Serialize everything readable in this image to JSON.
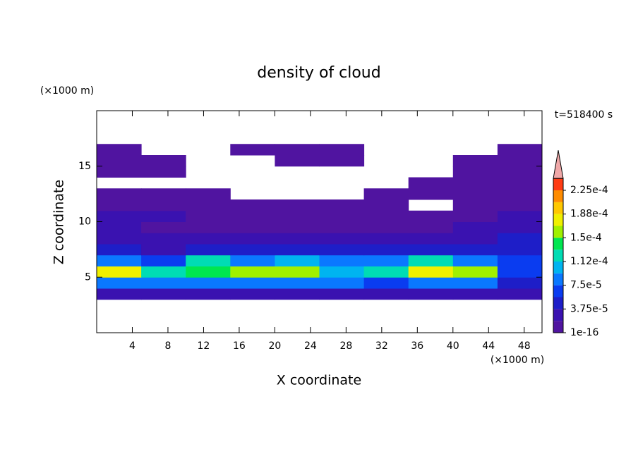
{
  "chart_data": {
    "type": "contour",
    "title": "density of cloud",
    "x_label": "X coordinate",
    "y_label": "Z coordinate",
    "x_unit": "(×1000 m)",
    "y_unit": "(×1000 m)",
    "annotation": "t=518400 s",
    "xlim": [
      0,
      50
    ],
    "ylim": [
      0,
      20
    ],
    "xticks": [
      4,
      8,
      12,
      16,
      20,
      24,
      28,
      32,
      36,
      40,
      44,
      48
    ],
    "yticks": [
      5,
      10,
      15
    ],
    "x": [
      2.5,
      7.5,
      12.5,
      17.5,
      22.5,
      27.5,
      32.5,
      37.5,
      42.5,
      47.5
    ],
    "y": [
      3.5,
      4.5,
      5.5,
      6.5,
      7.5,
      8.5,
      9.5,
      10.5,
      11.5,
      12.5,
      13.5,
      14.5,
      15.5,
      16.5
    ],
    "z": [
      [
        3e-05,
        3e-05,
        3e-05,
        3e-05,
        3e-05,
        3e-05,
        3e-05,
        3e-05,
        3e-05,
        2e-05
      ],
      [
        9e-05,
        8e-05,
        8e-05,
        8e-05,
        8e-05,
        8e-05,
        6e-05,
        9e-05,
        8e-05,
        5e-05
      ],
      [
        0.00017,
        0.00013,
        0.00014,
        0.00015,
        0.00016,
        0.00011,
        0.00012,
        0.00018,
        0.00015,
        6e-05
      ],
      [
        8e-05,
        7e-05,
        0.00012,
        9e-05,
        0.00011,
        8e-05,
        9e-05,
        0.00012,
        8e-05,
        6e-05
      ],
      [
        4e-05,
        3e-05,
        5e-05,
        4e-05,
        5e-05,
        4e-05,
        5e-05,
        5e-05,
        4e-05,
        5e-05
      ],
      [
        2e-05,
        2e-05,
        3e-05,
        2e-05,
        3e-05,
        2e-05,
        3e-05,
        2e-05,
        3e-05,
        4e-05
      ],
      [
        2e-05,
        1e-05,
        1e-05,
        1e-05,
        1e-05,
        1e-05,
        1e-05,
        1e-05,
        2e-05,
        3e-05
      ],
      [
        3e-05,
        2e-05,
        1e-05,
        1e-05,
        1e-05,
        1e-05,
        1e-05,
        1e-05,
        1e-05,
        2e-05
      ],
      [
        1e-05,
        1e-05,
        1e-05,
        1e-05,
        1e-05,
        1e-05,
        1e-05,
        null,
        1e-05,
        1e-05
      ],
      [
        1e-05,
        1e-05,
        1e-05,
        null,
        null,
        null,
        1e-05,
        1e-05,
        1e-05,
        1e-05
      ],
      [
        null,
        null,
        null,
        null,
        null,
        null,
        null,
        1e-05,
        1e-05,
        1e-05
      ],
      [
        1e-05,
        1e-05,
        null,
        null,
        null,
        null,
        null,
        null,
        1e-05,
        1e-05
      ],
      [
        1e-05,
        1e-05,
        null,
        null,
        1e-05,
        1e-05,
        null,
        null,
        1e-05,
        1e-05
      ],
      [
        1e-05,
        null,
        null,
        1e-05,
        1e-05,
        1e-05,
        null,
        null,
        null,
        1e-05
      ]
    ],
    "levels": [
      1e-16,
      1.875e-05,
      3.75e-05,
      5.625e-05,
      7.5e-05,
      9.375e-05,
      0.0001125,
      0.00013125,
      0.00015,
      0.00016875,
      0.0001875,
      0.00020625,
      0.000225,
      0.00024375
    ],
    "colors": [
      "#5014a0",
      "#3a12b0",
      "#1e1ec8",
      "#0a3cf0",
      "#0a78ff",
      "#00b4f0",
      "#00dcb4",
      "#00e650",
      "#a0f000",
      "#f0f000",
      "#ffc800",
      "#ff8c00",
      "#ff3c14"
    ],
    "extend_color": "#f0a8a8",
    "colorbar_ticks": [
      1e-16,
      {
        "value": 3.75e-05,
        "label": "3.75e-5"
      },
      {
        "value": 7.5e-05,
        "label": "7.5e-5"
      },
      {
        "value": 0.0001125,
        "label": "1.12e-4"
      },
      {
        "value": 0.00015,
        "label": "1.5e-4"
      },
      {
        "value": 0.0001875,
        "label": "1.88e-4"
      },
      {
        "value": 0.000225,
        "label": "2.25e-4"
      }
    ]
  }
}
